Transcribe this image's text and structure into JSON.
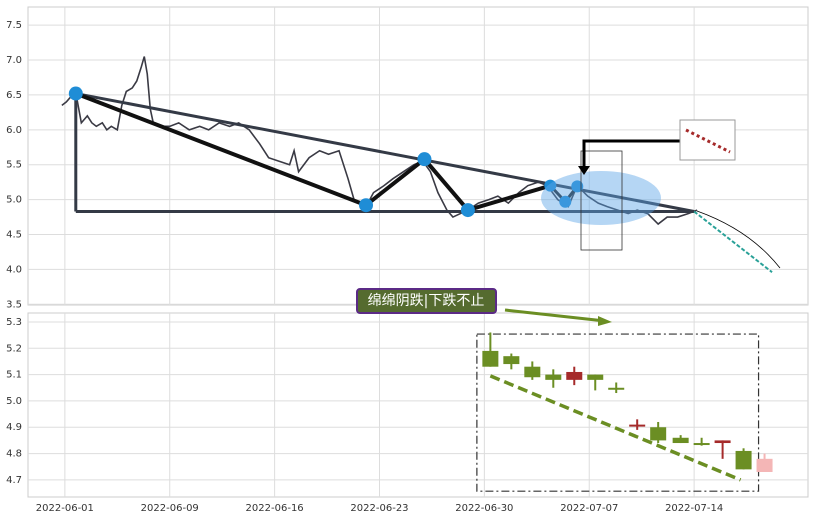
{
  "chart_data": [
    {
      "type": "line",
      "grid": true,
      "xlim": [
        -2.46,
        49.6
      ],
      "xticks": [
        0,
        7,
        14,
        21,
        28,
        35,
        42
      ],
      "ylim": [
        3.49,
        7.76
      ],
      "yticks": [
        3.5,
        {
          "value": 4,
          "label": "4.0"
        },
        4.5,
        {
          "value": 5,
          "label": "5.0"
        },
        5.5,
        {
          "value": 6,
          "label": "6.0"
        },
        6.5,
        {
          "value": 7,
          "label": "7.0"
        },
        7.5
      ],
      "series": [
        {
          "color": "#3a3a44",
          "x": [
            -0.2,
            0.1,
            0.5,
            0.8,
            1.1,
            1.5,
            1.8,
            2.1,
            2.5,
            2.8,
            3.1,
            3.5,
            3.8,
            4.1,
            4.5,
            4.8,
            5.1,
            5.3,
            5.5,
            5.7,
            5.9,
            6.3,
            7.0,
            7.6,
            8.3,
            9.0,
            9.6,
            10.3,
            11.0,
            11.6,
            12.3,
            13.0,
            13.6,
            14.3,
            15.0,
            15.3,
            15.6,
            16.3,
            17.0,
            17.6,
            18.3,
            18.9,
            19.3,
            19.7,
            20.1,
            20.6,
            21.3,
            21.9,
            22.6,
            23.3,
            23.9,
            24.4,
            24.9,
            25.5,
            25.9,
            26.4,
            26.9,
            27.6,
            28.3,
            28.9,
            29.6,
            30.3,
            30.9,
            31.6,
            32.2,
            32.9,
            33.6,
            34.2,
            34.9,
            35.6,
            36.2,
            36.9,
            37.6,
            38.2,
            38.9,
            39.6,
            40.2,
            40.9,
            41.6,
            42.2
          ],
          "values": [
            6.35,
            6.4,
            6.5,
            6.45,
            6.1,
            6.2,
            6.1,
            6.05,
            6.1,
            6.0,
            6.05,
            6.0,
            6.35,
            6.55,
            6.6,
            6.7,
            6.9,
            7.05,
            6.8,
            6.3,
            6.1,
            6.05,
            6.05,
            6.1,
            6.0,
            6.05,
            6.0,
            6.1,
            6.05,
            6.1,
            6.0,
            5.8,
            5.6,
            5.55,
            5.5,
            5.7,
            5.4,
            5.6,
            5.7,
            5.65,
            5.7,
            5.3,
            5.0,
            4.95,
            4.9,
            5.1,
            5.2,
            5.3,
            5.4,
            5.5,
            5.55,
            5.4,
            5.1,
            4.85,
            4.75,
            4.8,
            4.85,
            4.95,
            5.0,
            5.05,
            4.95,
            5.1,
            5.2,
            5.25,
            5.2,
            5.0,
            4.9,
            5.2,
            5.05,
            4.95,
            4.9,
            4.85,
            4.8,
            4.85,
            4.8,
            4.65,
            4.75,
            4.75,
            4.8,
            4.85
          ]
        }
      ],
      "points": {
        "color": "#1f8dd6",
        "x": [
          0.73,
          20.1,
          24.0,
          26.9,
          32.4,
          33.4,
          34.2
        ],
        "y": [
          6.52,
          4.92,
          5.58,
          4.85,
          5.2,
          4.97,
          5.19
        ]
      },
      "lines": [
        {
          "color": "#343a46",
          "width": 3,
          "x": [
            0.73,
            42.0
          ],
          "y": [
            6.52,
            4.83
          ]
        },
        {
          "color": "#343a46",
          "width": 3,
          "x": [
            0.73,
            42.0
          ],
          "y": [
            4.83,
            4.83
          ]
        },
        {
          "color": "#343a46",
          "width": 3,
          "x": [
            0.73,
            0.73
          ],
          "y": [
            6.52,
            4.83
          ]
        },
        {
          "color": "#111111",
          "width": 4,
          "x": [
            0.73,
            20.1,
            24.0,
            26.9,
            32.4
          ],
          "y": [
            6.52,
            4.92,
            5.58,
            4.85,
            5.2
          ]
        },
        {
          "color": "#222222",
          "width": 3,
          "x": [
            32.4,
            33.4,
            34.2
          ],
          "y": [
            5.2,
            4.97,
            5.19
          ]
        },
        {
          "color": "#2aa198",
          "width": 2,
          "x": [
            42.0,
            47.2
          ],
          "y": [
            4.83,
            3.96
          ]
        }
      ]
    },
    {
      "type": "candlestick",
      "grid": true,
      "xlim": [
        -2.46,
        49.6
      ],
      "xticks": [
        {
          "value": 0,
          "label": "2022-06-01"
        },
        {
          "value": 7,
          "label": "2022-06-09"
        },
        {
          "value": 14,
          "label": "2022-06-16"
        },
        {
          "value": 21,
          "label": "2022-06-23"
        },
        {
          "value": 28,
          "label": "2022-06-30"
        },
        {
          "value": 35,
          "label": "2022-07-07"
        },
        {
          "value": 42,
          "label": "2022-07-14"
        }
      ],
      "ylim": [
        4.635,
        5.334
      ],
      "yticks": [
        4.7,
        4.8,
        4.9,
        {
          "value": 5,
          "label": "5.0"
        },
        5.1,
        5.2,
        5.3
      ],
      "candles": {
        "x": [
          28.4,
          29.8,
          31.2,
          32.6,
          34.0,
          35.4,
          36.8,
          38.2,
          39.6,
          41.1,
          42.5,
          43.9,
          45.3,
          46.7
        ],
        "open": [
          5.19,
          5.17,
          5.13,
          5.1,
          5.08,
          5.1,
          5.05,
          4.91,
          4.9,
          4.86,
          4.84,
          4.84,
          4.81,
          4.73
        ],
        "close": [
          5.13,
          5.14,
          5.09,
          5.08,
          5.11,
          5.08,
          5.05,
          4.91,
          4.85,
          4.84,
          4.84,
          4.85,
          4.74,
          4.78
        ],
        "high": [
          5.26,
          5.18,
          5.15,
          5.12,
          5.13,
          5.1,
          5.07,
          4.93,
          4.92,
          4.87,
          4.86,
          4.85,
          4.82,
          4.8
        ],
        "low": [
          5.13,
          5.12,
          5.08,
          5.05,
          5.06,
          5.04,
          5.03,
          4.89,
          4.84,
          4.84,
          4.83,
          4.78,
          4.74,
          4.73
        ],
        "colors": [
          "#6b8e23",
          "#6b8e23",
          "#6b8e23",
          "#6b8e23",
          "#a52a2a",
          "#6b8e23",
          "#6b8e23",
          "#a52a2a",
          "#6b8e23",
          "#6b8e23",
          "#6b8e23",
          "#a52a2a",
          "#6b8e23",
          "#f4b6b6"
        ]
      },
      "trend": {
        "color": "#6b8e23",
        "x": [
          28.4,
          45.1
        ],
        "y": [
          5.095,
          4.7
        ]
      },
      "box": {
        "x": [
          27.5,
          46.3
        ],
        "y": [
          4.657,
          5.254
        ]
      },
      "annotation": "绵绵阴跌|下跌不止"
    }
  ]
}
